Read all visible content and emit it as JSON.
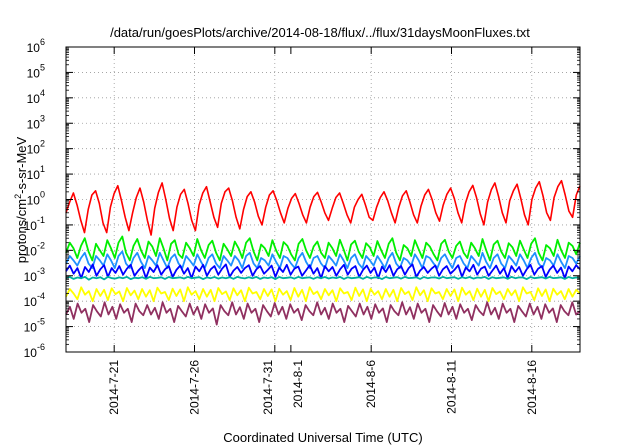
{
  "chart_data": {
    "type": "line",
    "title": "/data/run/goesPlots/archive/2014-08-18/flux/../flux/31daysMoonFluxes.txt",
    "xlabel": "Coordinated Universal Time (UTC)",
    "ylabel": {
      "prefix": "protons/cm",
      "superscript": "2",
      "suffix": "-s-sr-MeV"
    },
    "y_scale": "log",
    "ylim": [
      1e-06,
      1000000.0
    ],
    "y_ticks": [
      {
        "base": "10",
        "exp": "-6",
        "value": 1e-06
      },
      {
        "base": "10",
        "exp": "-5",
        "value": 1e-05
      },
      {
        "base": "10",
        "exp": "-4",
        "value": 0.0001
      },
      {
        "base": "10",
        "exp": "-3",
        "value": 0.001
      },
      {
        "base": "10",
        "exp": "-2",
        "value": 0.01
      },
      {
        "base": "10",
        "exp": "-1",
        "value": 0.1
      },
      {
        "base": "10",
        "exp": "0",
        "value": 1
      },
      {
        "base": "10",
        "exp": "1",
        "value": 10
      },
      {
        "base": "10",
        "exp": "2",
        "value": 100
      },
      {
        "base": "10",
        "exp": "3",
        "value": 1000
      },
      {
        "base": "10",
        "exp": "4",
        "value": 10000
      },
      {
        "base": "10",
        "exp": "5",
        "value": 100000
      },
      {
        "base": "10",
        "exp": "6",
        "value": 1000000
      }
    ],
    "xlim": [
      "2014-07-18",
      "2014-08-19"
    ],
    "x_ticks": [
      {
        "label": "2014-7-21",
        "date": "2014-07-21"
      },
      {
        "label": "2014-7-26",
        "date": "2014-07-26"
      },
      {
        "label": "2014-7-31",
        "date": "2014-07-31"
      },
      {
        "label": "2014-8-1",
        "date": "2014-08-01"
      },
      {
        "label": "2014-8-6",
        "date": "2014-08-06"
      },
      {
        "label": "2014-8-11",
        "date": "2014-08-11"
      },
      {
        "label": "2014-8-16",
        "date": "2014-08-16"
      }
    ],
    "grid": true,
    "legend": "none",
    "series": [
      {
        "color": "#ff0000",
        "values": [
          0.3,
          0.8,
          1.8,
          0.6,
          0.15,
          0.05,
          0.4,
          1.5,
          2.2,
          0.7,
          0.12,
          0.05,
          0.5,
          1.7,
          3.5,
          0.9,
          0.2,
          0.06,
          0.3,
          1.2,
          2.8,
          0.8,
          0.15,
          0.04,
          0.45,
          1.9,
          4.5,
          1.0,
          0.18,
          0.06,
          0.5,
          1.6,
          2.5,
          0.7,
          0.15,
          0.06,
          0.6,
          1.8,
          3.2,
          0.8,
          0.2,
          0.08,
          0.7,
          2.0,
          2.8,
          0.9,
          0.2,
          0.07,
          0.4,
          1.3,
          2.0,
          0.8,
          0.22,
          0.1,
          0.5,
          1.5,
          2.2,
          0.9,
          0.3,
          0.12,
          0.45,
          1.1,
          1.7,
          0.7,
          0.25,
          0.12,
          0.5,
          1.3,
          1.9,
          0.8,
          0.3,
          0.15,
          0.45,
          1.2,
          1.8,
          0.7,
          0.25,
          0.12,
          0.5,
          1.0,
          1.6,
          0.6,
          0.2,
          0.15,
          0.5,
          1.2,
          2.0,
          0.9,
          0.3,
          0.12,
          0.5,
          1.4,
          2.2,
          0.8,
          0.25,
          0.12,
          0.55,
          1.5,
          2.5,
          1.0,
          0.3,
          0.14,
          0.6,
          1.6,
          2.8,
          1.1,
          0.3,
          0.12,
          0.7,
          2.0,
          3.6,
          1.2,
          0.28,
          0.1,
          0.8,
          2.4,
          4.5,
          1.3,
          0.3,
          0.12,
          0.9,
          2.2,
          4.0,
          1.1,
          0.25,
          0.1,
          1.0,
          2.8,
          5.0,
          1.4,
          0.3,
          0.15,
          1.2,
          3.2,
          5.5,
          1.5,
          0.35,
          0.2,
          1.5,
          3.5
        ]
      },
      {
        "color": "#00ee00",
        "values": [
          0.008,
          0.02,
          0.012,
          0.005,
          0.015,
          0.03,
          0.009,
          0.004,
          0.018,
          0.01,
          0.006,
          0.025,
          0.012,
          0.005,
          0.02,
          0.035,
          0.008,
          0.004,
          0.015,
          0.028,
          0.01,
          0.005,
          0.022,
          0.014,
          0.006,
          0.03,
          0.012,
          0.004,
          0.018,
          0.025,
          0.007,
          0.005,
          0.02,
          0.012,
          0.006,
          0.028,
          0.01,
          0.005,
          0.016,
          0.024,
          0.008,
          0.004,
          0.018,
          0.011,
          0.006,
          0.022,
          0.012,
          0.005,
          0.02,
          0.03,
          0.009,
          0.004,
          0.017,
          0.012,
          0.006,
          0.025,
          0.01,
          0.005,
          0.021,
          0.015,
          0.007,
          0.004,
          0.018,
          0.028,
          0.01,
          0.005,
          0.014,
          0.022,
          0.008,
          0.005,
          0.02,
          0.012,
          0.006,
          0.026,
          0.011,
          0.004,
          0.017,
          0.024,
          0.009,
          0.005,
          0.019,
          0.013,
          0.006,
          0.023,
          0.01,
          0.005,
          0.018,
          0.03,
          0.008,
          0.004,
          0.016,
          0.012,
          0.006,
          0.025,
          0.011,
          0.005,
          0.02,
          0.014,
          0.007,
          0.004,
          0.018,
          0.026,
          0.009,
          0.005,
          0.015,
          0.022,
          0.008,
          0.005,
          0.02,
          0.012,
          0.006,
          0.028,
          0.01,
          0.004,
          0.017,
          0.024,
          0.009,
          0.005,
          0.019,
          0.013,
          0.006,
          0.024,
          0.011,
          0.005,
          0.018,
          0.03,
          0.008,
          0.004,
          0.016,
          0.012,
          0.006,
          0.026,
          0.01,
          0.005,
          0.02,
          0.015,
          0.007,
          0.02
        ]
      },
      {
        "color": "#1e90ff",
        "values": [
          0.003,
          0.006,
          0.004,
          0.0025,
          0.005,
          0.008,
          0.003,
          0.002,
          0.006,
          0.004,
          0.0025,
          0.007,
          0.004,
          0.002,
          0.006,
          0.009,
          0.003,
          0.002,
          0.005,
          0.008,
          0.0035,
          0.002,
          0.006,
          0.004,
          0.0025,
          0.008,
          0.004,
          0.002,
          0.005,
          0.007,
          0.003,
          0.002,
          0.006,
          0.004,
          0.0025,
          0.007,
          0.0035,
          0.002,
          0.005,
          0.007,
          0.003,
          0.002,
          0.006,
          0.004,
          0.0025,
          0.006,
          0.004,
          0.002,
          0.006,
          0.008,
          0.003,
          0.002,
          0.005,
          0.004,
          0.0025,
          0.007,
          0.0035,
          0.002,
          0.006,
          0.005,
          0.003,
          0.002,
          0.005,
          0.008,
          0.0035,
          0.002,
          0.005,
          0.006,
          0.003,
          0.002,
          0.006,
          0.004,
          0.0025,
          0.007,
          0.004,
          0.002,
          0.005,
          0.007,
          0.003,
          0.002,
          0.006,
          0.004,
          0.0025,
          0.006,
          0.0035,
          0.002,
          0.005,
          0.008,
          0.003,
          0.002,
          0.005,
          0.004,
          0.0025,
          0.007,
          0.004,
          0.002,
          0.006,
          0.005,
          0.003,
          0.002,
          0.005,
          0.007,
          0.0035,
          0.002,
          0.005,
          0.006,
          0.003,
          0.002,
          0.006,
          0.004,
          0.0025,
          0.008,
          0.0035,
          0.002,
          0.005,
          0.007,
          0.003,
          0.002,
          0.006,
          0.004,
          0.0025,
          0.007,
          0.004,
          0.002,
          0.005,
          0.008,
          0.003,
          0.002,
          0.005,
          0.004,
          0.0025,
          0.007,
          0.0035,
          0.002,
          0.006,
          0.005,
          0.003,
          0.006
        ]
      },
      {
        "color": "#0000ff",
        "values": [
          0.0015,
          0.0025,
          0.0012,
          0.002,
          0.0008,
          0.0022,
          0.0014,
          0.0028,
          0.001,
          0.0018,
          0.0026,
          0.0009,
          0.002,
          0.0013,
          0.0024,
          0.0011,
          0.0019,
          0.0027,
          0.001,
          0.0016,
          0.0023,
          0.0008,
          0.0021,
          0.0014,
          0.0026,
          0.0011,
          0.0018,
          0.0024,
          0.0009,
          0.0017,
          0.0025,
          0.0012,
          0.002,
          0.0008,
          0.0023,
          0.0015,
          0.0027,
          0.001,
          0.0018,
          0.0024,
          0.0011,
          0.0019,
          0.0028,
          0.0009,
          0.0016,
          0.0022,
          0.0013,
          0.002,
          0.0026,
          0.001,
          0.0018,
          0.0024,
          0.0012,
          0.0017,
          0.0025,
          0.0009,
          0.0021,
          0.0014,
          0.0027,
          0.0011,
          0.0019,
          0.0023,
          0.001,
          0.0016,
          0.0026,
          0.0012,
          0.002,
          0.0008,
          0.0024,
          0.0015,
          0.0022,
          0.001,
          0.0018,
          0.0027,
          0.0011,
          0.0019,
          0.0024,
          0.0009,
          0.0017,
          0.0025,
          0.0013,
          0.0021,
          0.0008,
          0.0023,
          0.0014,
          0.0026,
          0.001,
          0.0018,
          0.0024,
          0.0011,
          0.002,
          0.0028,
          0.0009,
          0.0016,
          0.0022,
          0.0013,
          0.0019,
          0.0025,
          0.001,
          0.0018,
          0.0024,
          0.0012,
          0.0017,
          0.0026,
          0.0009,
          0.0021,
          0.0015,
          0.0027,
          0.0011,
          0.0019,
          0.0023,
          0.001,
          0.0016,
          0.0025,
          0.0012,
          0.002,
          0.0008,
          0.0024,
          0.0014,
          0.0022,
          0.001,
          0.0018,
          0.0027,
          0.0011,
          0.0019,
          0.0024,
          0.0009,
          0.0017,
          0.0025,
          0.0013,
          0.0021,
          0.0008,
          0.0023,
          0.0015,
          0.0026,
          0.0018
        ]
      },
      {
        "color": "#00b0a0",
        "values": [
          0.0008,
          0.0009,
          0.00075,
          0.00085,
          0.0008,
          0.0009,
          0.0007,
          0.00085,
          0.0008,
          0.00088,
          0.00072,
          0.0009,
          0.0008,
          0.00078,
          0.00086,
          0.0008,
          0.0009,
          0.00074,
          0.00084,
          0.0008,
          0.00088,
          0.00076,
          0.0009,
          0.0008,
          0.00082,
          0.00087,
          0.00075,
          0.00089,
          0.0008,
          0.00083,
          0.00086,
          0.00078,
          0.0009,
          0.0008,
          0.00084,
          0.00088,
          0.00074,
          0.00086,
          0.0008,
          0.00089,
          0.00077,
          0.00085,
          0.0008,
          0.00088,
          0.00076,
          0.0009,
          0.00082,
          0.00079,
          0.00087,
          0.0008,
          0.0009,
          0.00075,
          0.00085,
          0.00081,
          0.00088,
          0.00074,
          0.00089,
          0.0008,
          0.00083,
          0.00087,
          0.00077,
          0.0009,
          0.0008,
          0.00084,
          0.00086,
          0.00076,
          0.00088,
          0.0008,
          0.00089,
          0.00078,
          0.00085,
          0.00081,
          0.0009,
          0.00075,
          0.00087,
          0.0008,
          0.00083,
          0.00088,
          0.00076,
          0.0009,
          0.0008,
          0.00085,
          0.00086,
          0.00074,
          0.00089,
          0.0008,
          0.00084,
          0.00088,
          0.00077,
          0.0009,
          0.00081,
          0.00083,
          0.00087,
          0.00075,
          0.00089,
          0.0008,
          0.00085,
          0.00086,
          0.00078,
          0.0009,
          0.0008,
          0.00084,
          0.00088,
          0.00076,
          0.00087,
          0.0008,
          0.00089,
          0.00077,
          0.00085,
          0.00082,
          0.0009,
          0.00075,
          0.00088,
          0.0008,
          0.00083,
          0.00087,
          0.00076,
          0.0009,
          0.0008,
          0.00086,
          0.00085,
          0.00074,
          0.00089,
          0.0008,
          0.00084,
          0.00088,
          0.00078,
          0.0009,
          0.00081,
          0.00083,
          0.00087,
          0.00075,
          0.00089,
          0.0008,
          0.00085,
          0.0008
        ]
      },
      {
        "color": "#ffff00",
        "values": [
          0.00015,
          0.0003,
          0.0002,
          0.00012,
          0.00035,
          0.00018,
          0.00025,
          0.0001,
          0.0003,
          0.00016,
          0.00028,
          0.00011,
          0.00032,
          0.00019,
          0.00024,
          0.0001,
          0.00033,
          0.00017,
          0.00026,
          0.00012,
          0.0003,
          0.00015,
          0.00027,
          0.0001,
          0.00034,
          0.0002,
          0.00023,
          0.00011,
          0.00031,
          0.00016,
          0.00029,
          0.0001,
          0.00035,
          0.00018,
          0.00025,
          0.00012,
          0.0003,
          0.00015,
          0.00028,
          0.0001,
          0.00033,
          0.00019,
          0.00024,
          0.00011,
          0.00032,
          0.00017,
          0.00027,
          0.0001,
          0.00034,
          0.0002,
          0.00023,
          0.00012,
          0.0003,
          0.00016,
          0.00029,
          0.0001,
          0.00031,
          0.00018,
          0.00025,
          0.00011,
          0.00033,
          0.00015,
          0.00028,
          0.0001,
          0.00035,
          0.00019,
          0.00024,
          0.00012,
          0.0003,
          0.00017,
          0.00027,
          0.0001,
          0.00032,
          0.0002,
          0.00023,
          0.00011,
          0.00034,
          0.00016,
          0.00029,
          0.0001,
          0.00031,
          0.00018,
          0.00025,
          0.00012,
          0.0003,
          0.00015,
          0.00028,
          0.0001,
          0.00033,
          0.00019,
          0.00024,
          0.00011,
          0.00035,
          0.00017,
          0.00027,
          0.0001,
          0.00032,
          0.0002,
          0.00023,
          0.00012,
          0.0003,
          0.00016,
          0.00029,
          0.0001,
          0.00034,
          0.00018,
          0.00025,
          0.00011,
          0.00031,
          0.00015,
          0.00028,
          0.0001,
          0.00033,
          0.00019,
          0.00024,
          0.00012,
          0.0003,
          0.00017,
          0.00027,
          0.0001,
          0.00035,
          0.0002,
          0.00023,
          0.00011,
          0.00032,
          0.00016,
          0.00029,
          0.0001,
          0.00031,
          0.00018,
          0.00025,
          0.00012,
          0.0003,
          0.00015,
          0.00028,
          0.0002
        ]
      },
      {
        "color": "#903060",
        "values": [
          3e-05,
          6e-05,
          2e-05,
          8e-05,
          3.5e-05,
          5e-05,
          1.5e-05,
          7e-05,
          4e-05,
          2.5e-05,
          9e-05,
          3e-05,
          6e-05,
          2e-05,
          7.5e-05,
          3.5e-05,
          5e-05,
          1.5e-05,
          8e-05,
          4e-05,
          2.8e-05,
          7e-05,
          3e-05,
          5.5e-05,
          2e-05,
          9e-05,
          3.5e-05,
          5e-05,
          1.5e-05,
          6.5e-05,
          4e-05,
          2.5e-05,
          8e-05,
          3e-05,
          6e-05,
          2e-05,
          7.5e-05,
          3.5e-05,
          5.2e-05,
          1.2e-05,
          7e-05,
          4e-05,
          2.8e-05,
          9e-05,
          3e-05,
          5.8e-05,
          2e-05,
          8e-05,
          3.5e-05,
          5e-05,
          1.5e-05,
          7e-05,
          4e-05,
          2.5e-05,
          8.5e-05,
          3e-05,
          6e-05,
          2e-05,
          7.5e-05,
          3.5e-05,
          5e-05,
          1.8e-05,
          7e-05,
          4e-05,
          2.8e-05,
          9e-05,
          3e-05,
          5.5e-05,
          2e-05,
          8e-05,
          3.5e-05,
          5e-05,
          1.5e-05,
          6.5e-05,
          4e-05,
          2.5e-05,
          8e-05,
          3e-05,
          6e-05,
          2e-05,
          7.5e-05,
          3.5e-05,
          5.2e-05,
          1.5e-05,
          7e-05,
          4e-05,
          2.8e-05,
          9e-05,
          3e-05,
          5.8e-05,
          2e-05,
          8e-05,
          3.5e-05,
          5e-05,
          1.5e-05,
          7e-05,
          4e-05,
          2.5e-05,
          8.5e-05,
          3e-05,
          6e-05,
          2e-05,
          7.5e-05,
          3.5e-05,
          5e-05,
          1.8e-05,
          7e-05,
          4e-05,
          2.8e-05,
          9e-05,
          3e-05,
          5.5e-05,
          2e-05,
          8e-05,
          3.5e-05,
          5e-05,
          1.5e-05,
          6.5e-05,
          4e-05,
          2.5e-05,
          8e-05,
          3e-05,
          6e-05,
          2e-05,
          7.5e-05,
          3.5e-05,
          5.2e-05,
          1.5e-05,
          7e-05,
          4e-05,
          2.8e-05,
          9e-05,
          3e-05,
          4e-05
        ]
      }
    ]
  }
}
